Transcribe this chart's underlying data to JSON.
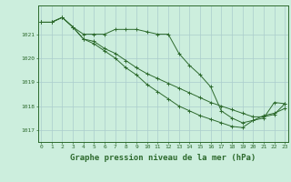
{
  "line1": [
    1021.5,
    1021.5,
    1021.7,
    1021.3,
    1021.0,
    1021.0,
    1021.0,
    1021.2,
    1021.2,
    1021.2,
    1021.1,
    1021.0,
    1021.0,
    1020.2,
    1019.7,
    1019.3,
    1018.8,
    1017.8,
    1017.5,
    1017.3,
    1017.4,
    1017.5,
    1018.15,
    1018.1
  ],
  "line2": [
    1021.5,
    1021.5,
    1021.7,
    1021.3,
    1020.8,
    1020.6,
    1020.3,
    1020.0,
    1019.6,
    1019.3,
    1018.9,
    1018.6,
    1018.3,
    1018.0,
    1017.8,
    1017.6,
    1017.45,
    1017.3,
    1017.15,
    1017.1,
    1017.4,
    1017.6,
    1017.7,
    1017.9
  ],
  "line3": [
    1021.5,
    1021.5,
    1021.7,
    1021.3,
    1020.8,
    1020.7,
    1020.4,
    1020.2,
    1019.9,
    1019.6,
    1019.35,
    1019.15,
    1018.95,
    1018.75,
    1018.55,
    1018.35,
    1018.15,
    1018.0,
    1017.85,
    1017.7,
    1017.55,
    1017.55,
    1017.65,
    1018.1
  ],
  "x": [
    0,
    1,
    2,
    3,
    4,
    5,
    6,
    7,
    8,
    9,
    10,
    11,
    12,
    13,
    14,
    15,
    16,
    17,
    18,
    19,
    20,
    21,
    22,
    23
  ],
  "xlim": [
    -0.3,
    23.3
  ],
  "ylim": [
    1016.5,
    1022.2
  ],
  "yticks": [
    1017,
    1018,
    1019,
    1020,
    1021
  ],
  "xticks": [
    0,
    1,
    2,
    3,
    4,
    5,
    6,
    7,
    8,
    9,
    10,
    11,
    12,
    13,
    14,
    15,
    16,
    17,
    18,
    19,
    20,
    21,
    22,
    23
  ],
  "line_color": "#2d6a2d",
  "bg_color": "#cceedd",
  "grid_color": "#aacccc",
  "xlabel": "Graphe pression niveau de la mer (hPa)",
  "tick_fontsize": 4.5,
  "label_fontsize": 6.5
}
